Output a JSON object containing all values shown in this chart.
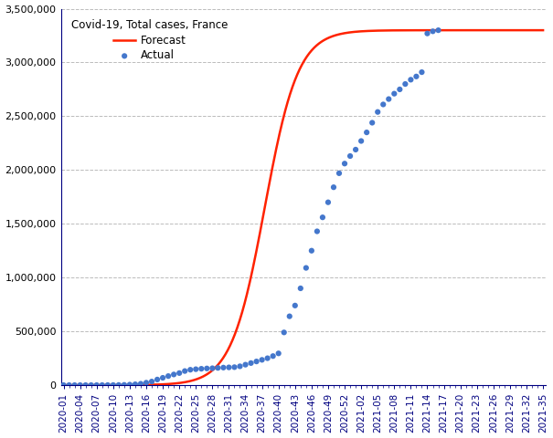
{
  "title": "Covid-19, Total cases, France",
  "forecast_color": "#ff2200",
  "actual_color": "#4477cc",
  "background_color": "#ffffff",
  "grid_color": "#aaaaaa",
  "forecast_linewidth": 1.8,
  "ylim": [
    0,
    3500000
  ],
  "yticks": [
    0,
    500000,
    1000000,
    1500000,
    2000000,
    2500000,
    3000000,
    3500000
  ],
  "L": 3300000,
  "k": 0.33,
  "x0_week": 37.5,
  "x_start": 1,
  "x_end": 88,
  "actual_weeks": [
    1,
    2,
    3,
    4,
    5,
    6,
    7,
    8,
    9,
    10,
    11,
    12,
    13,
    14,
    15,
    16,
    17,
    18,
    19,
    20,
    21,
    22,
    23,
    24,
    25,
    26,
    27,
    28,
    29,
    30,
    31,
    32,
    33,
    34,
    35,
    36,
    37,
    38,
    39,
    40,
    41,
    42,
    43,
    44,
    45,
    46,
    47,
    48,
    49,
    50,
    51,
    52,
    53,
    54,
    55,
    56,
    57,
    58,
    59,
    60,
    61,
    62,
    63,
    64,
    65,
    66,
    67,
    68,
    69
  ],
  "actual_values": [
    2,
    5,
    12,
    19,
    26,
    57,
    100,
    200,
    400,
    700,
    1200,
    2200,
    4500,
    7700,
    12600,
    22600,
    33400,
    52000,
    68000,
    84000,
    99000,
    112000,
    131000,
    143000,
    148000,
    152000,
    155000,
    157000,
    160000,
    163000,
    165000,
    167000,
    175000,
    190000,
    205000,
    220000,
    235000,
    250000,
    270000,
    295000,
    490000,
    640000,
    740000,
    900000,
    1090000,
    1250000,
    1430000,
    1560000,
    1700000,
    1840000,
    1970000,
    2060000,
    2130000,
    2190000,
    2270000,
    2350000,
    2440000,
    2540000,
    2610000,
    2660000,
    2710000,
    2750000,
    2800000,
    2840000,
    2870000,
    2910000,
    3270000,
    3290000,
    3300000
  ],
  "x_tick_positions": [
    1,
    4,
    7,
    10,
    13,
    16,
    19,
    22,
    25,
    28,
    31,
    34,
    37,
    40,
    43,
    46,
    49,
    52,
    55,
    58,
    61,
    64,
    67,
    70,
    73,
    76,
    79,
    82,
    85,
    88
  ],
  "x_tick_labels": [
    "2020-01",
    "2020-04",
    "2020-07",
    "2020-10",
    "2020-13",
    "2020-16",
    "2020-19",
    "2020-22",
    "2020-25",
    "2020-28",
    "2020-31",
    "2020-34",
    "2020-37",
    "2020-40",
    "2020-43",
    "2020-46",
    "2020-49",
    "2020-52",
    "2021-02",
    "2021-05",
    "2021-08",
    "2021-11",
    "2021-14",
    "2021-17",
    "2021-20",
    "2021-23",
    "2021-26",
    "2021-29",
    "2021-32",
    "2021-35"
  ]
}
